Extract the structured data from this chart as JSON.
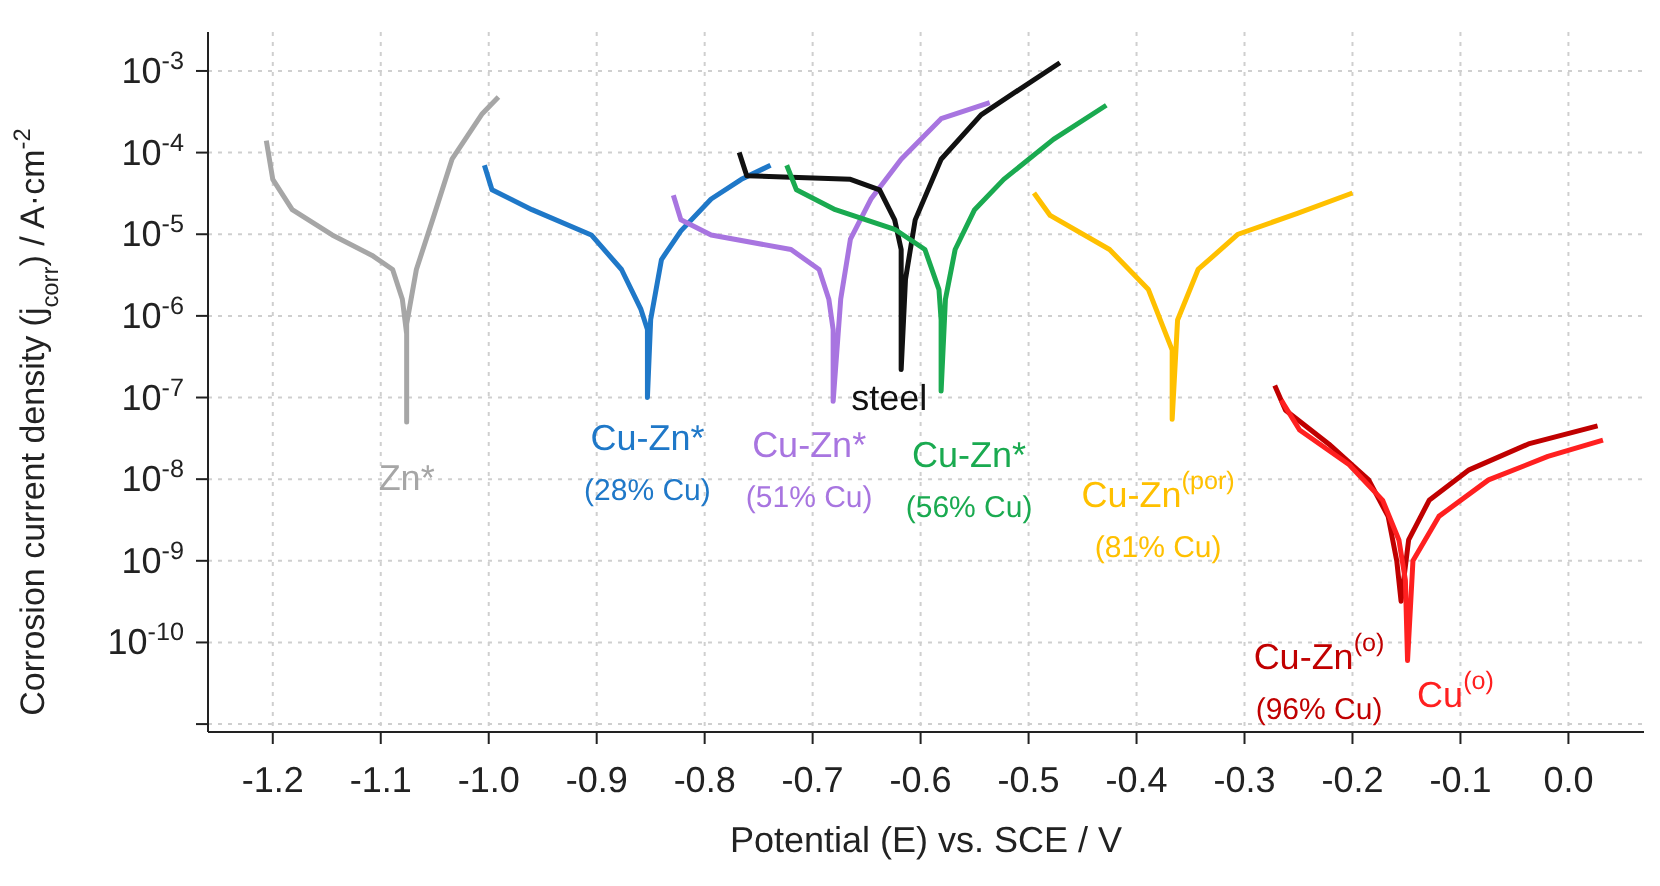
{
  "chart_data": {
    "type": "line",
    "xlabel": "Potential (E) vs. SCE / V",
    "ylabel": "Corrosion current density (j$_{corr}$) / A·cm$^{-2}$",
    "log": "y",
    "grid": true,
    "xlim": [
      -1.26,
      0.07
    ],
    "xticks": [
      -1.2,
      -1.1,
      {
        "value": -1.0,
        "label": "-1.0"
      },
      -0.9,
      -0.8,
      -0.7,
      -0.6,
      -0.5,
      -0.4,
      -0.3,
      -0.2,
      -0.1,
      {
        "value": 0.0,
        "label": "0.0"
      }
    ],
    "ylim": [
      8e-12,
      0.003
    ],
    "yticks": [
      {
        "value": 0.001,
        "label": "10$^{-3}$"
      },
      {
        "value": 0.0001,
        "label": "10$^{-4}$"
      },
      {
        "value": 1e-05,
        "label": "10$^{-5}$"
      },
      {
        "value": 1e-06,
        "label": "10$^{-6}$"
      },
      {
        "value": 1e-07,
        "label": "10$^{-7}$"
      },
      {
        "value": 1e-08,
        "label": "10$^{-8}$"
      },
      {
        "value": 1e-09,
        "label": "10$^{-9}$"
      },
      {
        "value": 1e-10,
        "label": "10$^{-10}$"
      },
      {
        "value": 1e-11,
        "label": null
      }
    ],
    "series": [
      {
        "name": "Zn*",
        "color": "#a6a6a6",
        "x": [
          -1.206,
          -1.2,
          -1.182,
          -1.145,
          -1.108,
          -1.089,
          -1.08,
          -1.076,
          -1.076,
          -1.076,
          -1.067,
          -1.052,
          -1.034,
          -1.006,
          -0.991
        ],
        "values": [
          0.00014,
          4.7e-05,
          2e-05,
          9.8e-06,
          5.5e-06,
          3.7e-06,
          1.6e-06,
          6e-07,
          5e-08,
          8e-07,
          3.7e-06,
          1.5e-05,
          8.3e-05,
          0.0003,
          0.00048
        ]
      },
      {
        "name": "Cu-Zn* (28% Cu)",
        "color": "#1f78c8",
        "x": [
          -1.004,
          -0.997,
          -0.96,
          -0.905,
          -0.877,
          -0.859,
          -0.853,
          -0.853,
          -0.85,
          -0.84,
          -0.822,
          -0.794,
          -0.766,
          -0.739
        ],
        "values": [
          7e-05,
          3.5e-05,
          2e-05,
          9.8e-06,
          3.7e-06,
          1.2e-06,
          6.8e-07,
          1e-07,
          9e-07,
          4.9e-06,
          1.1e-05,
          2.7e-05,
          4.7e-05,
          7e-05
        ]
      },
      {
        "name": "Cu-Zn* (51% Cu)",
        "color": "#a875e0",
        "x": [
          -0.829,
          -0.822,
          -0.794,
          -0.72,
          -0.694,
          -0.685,
          -0.681,
          -0.681,
          -0.674,
          -0.665,
          -0.646,
          -0.618,
          -0.581,
          -0.536
        ],
        "values": [
          3e-05,
          1.5e-05,
          9.8e-06,
          6.5e-06,
          3.7e-06,
          1.6e-06,
          6.8e-07,
          9e-08,
          1.6e-06,
          8.7e-06,
          2.7e-05,
          8.3e-05,
          0.00026,
          0.00041
        ]
      },
      {
        "name": "steel",
        "color": "#111111",
        "x": [
          -0.768,
          -0.761,
          -0.72,
          -0.665,
          -0.638,
          -0.624,
          -0.618,
          -0.618,
          -0.618,
          -0.614,
          -0.605,
          -0.581,
          -0.544,
          -0.508,
          -0.471
        ],
        "values": [
          0.0001,
          5.2e-05,
          5e-05,
          4.7e-05,
          3.5e-05,
          1.5e-05,
          6.5e-06,
          1.6e-06,
          2.2e-07,
          2.8e-06,
          1.5e-05,
          8.3e-05,
          0.00029,
          0.0006,
          0.00126
        ]
      },
      {
        "name": "Cu-Zn* (56% Cu)",
        "color": "#1aaa50",
        "x": [
          -0.724,
          -0.715,
          -0.679,
          -0.624,
          -0.596,
          -0.583,
          -0.581,
          -0.581,
          -0.577,
          -0.568,
          -0.55,
          -0.523,
          -0.477,
          -0.428
        ],
        "values": [
          7e-05,
          3.5e-05,
          2e-05,
          1.15e-05,
          6.5e-06,
          2.1e-06,
          8.9e-07,
          1.2e-07,
          1.6e-06,
          6.5e-06,
          2e-05,
          4.7e-05,
          0.000145,
          0.00038
        ]
      },
      {
        "name": "Cu-Zn$^{(por)}$ (81% Cu)",
        "color": "#ffc000",
        "x": [
          -0.495,
          -0.48,
          -0.425,
          -0.389,
          -0.367,
          -0.367,
          -0.362,
          -0.343,
          -0.306,
          -0.251,
          -0.2
        ],
        "values": [
          3.2e-05,
          1.7e-05,
          6.5e-06,
          2.1e-06,
          3.8e-07,
          5.4e-08,
          8.9e-07,
          3.7e-06,
          1e-05,
          1.8e-05,
          3.2e-05
        ]
      },
      {
        "name": "Cu-Zn$^{(o)}$ (96% Cu)",
        "color": "#c00000",
        "x": [
          -0.272,
          -0.262,
          -0.222,
          -0.185,
          -0.167,
          -0.159,
          -0.155,
          -0.148,
          -0.129,
          -0.092,
          -0.037,
          0.027
        ],
        "values": [
          1.4e-07,
          7e-08,
          2.7e-08,
          9.8e-09,
          3.5e-09,
          1e-09,
          3.2e-10,
          1.8e-09,
          5.5e-09,
          1.3e-08,
          2.7e-08,
          4.5e-08
        ]
      },
      {
        "name": "Cu$^{(o)}$",
        "color": "#ff2020",
        "x": [
          -0.266,
          -0.249,
          -0.203,
          -0.172,
          -0.157,
          -0.151,
          -0.149,
          -0.144,
          -0.12,
          -0.074,
          -0.019,
          0.032
        ],
        "values": [
          9.3e-08,
          4e-08,
          1.5e-08,
          5.5e-09,
          1.8e-09,
          5.8e-10,
          6e-11,
          1e-09,
          3.5e-09,
          9.8e-09,
          1.9e-08,
          3e-08
        ]
      }
    ]
  }
}
